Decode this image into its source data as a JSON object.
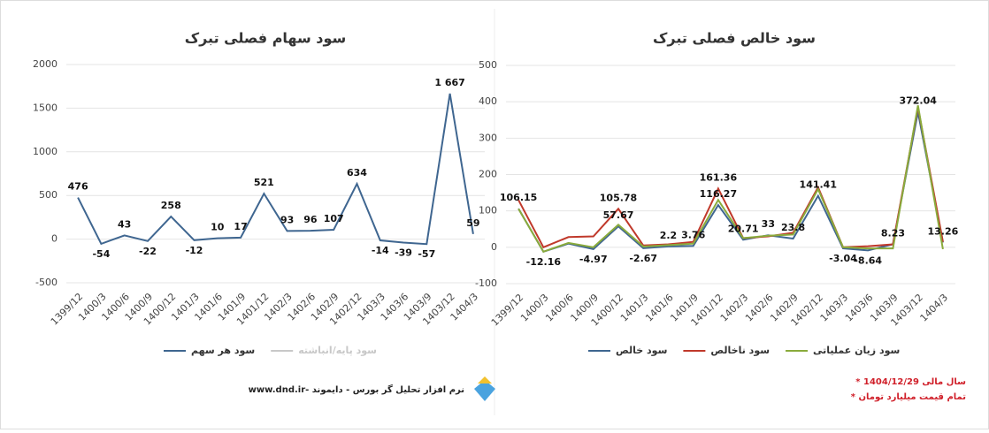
{
  "chart_data": [
    {
      "type": "line",
      "title": "سود سهام فصلی تبرک",
      "categories": [
        "1399/12",
        "1400/3",
        "1400/6",
        "1400/9",
        "1400/12",
        "1401/3",
        "1401/6",
        "1401/9",
        "1401/12",
        "1402/3",
        "1402/6",
        "1402/9",
        "1402/12",
        "1403/3",
        "1403/6",
        "1403/9",
        "1403/12",
        "1404/3"
      ],
      "series": [
        {
          "name": "سود هر سهم",
          "color": "#3f6690",
          "values": [
            476,
            -54,
            43,
            -22,
            258,
            -12,
            10,
            17,
            521,
            93,
            96,
            107,
            634,
            -14,
            -39,
            -57,
            1667,
            59
          ],
          "value_labels": [
            "476",
            "-54",
            "43",
            "-22",
            "258",
            "-12",
            "10",
            "17",
            "521",
            "93",
            "96",
            "107",
            "634",
            "-14",
            "-39",
            "-57",
            "1 667",
            "59"
          ]
        },
        {
          "name": "سود پایه/انباشته",
          "color": "#c8c8c8",
          "values": [
            null,
            null,
            null,
            null,
            null,
            null,
            null,
            null,
            null,
            null,
            null,
            null,
            null,
            null,
            null,
            null,
            null,
            null
          ]
        }
      ],
      "ylim": [
        -500,
        2000
      ],
      "yticks": [
        -500,
        0,
        500,
        1000,
        1500,
        2000
      ],
      "grid": true
    },
    {
      "type": "line",
      "title": "سود خالص فصلی تبرک",
      "categories": [
        "1399/12",
        "1400/3",
        "1400/6",
        "1400/9",
        "1400/12",
        "1401/3",
        "1401/6",
        "1401/9",
        "1401/12",
        "1402/3",
        "1402/6",
        "1402/9",
        "1402/12",
        "1403/3",
        "1403/6",
        "1403/9",
        "1403/12",
        "1404/3"
      ],
      "series": [
        {
          "name": "سود خالص",
          "color": "#3f6690",
          "values": [
            106.15,
            -12.16,
            10,
            -4.97,
            57.67,
            -2.67,
            2.2,
            3.76,
            116.27,
            20.71,
            33,
            23.8,
            141.41,
            -3.04,
            -8.64,
            8.23,
            372.04,
            13.26
          ],
          "value_labels": [
            "106.15",
            "-12.16",
            null,
            "-4.97",
            "57.67",
            "-2.67",
            "2.2",
            "3.76",
            "116.27",
            "20.71",
            "33",
            "23.8",
            "141.41",
            "-3.04",
            "-8.64",
            "8.23",
            "372.04",
            "13.26"
          ]
        },
        {
          "name": "سود ناخالص",
          "color": "#c0392b",
          "values": [
            130,
            0,
            28,
            30,
            105.78,
            5,
            8,
            15,
            161.36,
            25,
            30,
            40,
            165,
            0,
            3,
            8,
            385,
            15
          ],
          "value_labels": [
            null,
            null,
            null,
            null,
            "105.78",
            null,
            null,
            null,
            "161.36",
            null,
            null,
            null,
            null,
            null,
            null,
            null,
            null,
            null
          ]
        },
        {
          "name": "سود زیان عملیاتی",
          "color": "#8aab3c",
          "values": [
            106,
            -12,
            12,
            0,
            62,
            2,
            6,
            10,
            130,
            25,
            32,
            35,
            160,
            0,
            -3,
            -3,
            390,
            -5
          ]
        }
      ],
      "ylim": [
        -100,
        500
      ],
      "yticks": [
        -100,
        0,
        100,
        200,
        300,
        400,
        500
      ],
      "grid": true
    }
  ],
  "footer": {
    "credit": "www.dnd.ir- نرم افزار تحلیل گر بورس - دایموند",
    "notes": [
      "* سال مالی 1404/12/29",
      "* تمام قیمت میلیارد تومان"
    ]
  }
}
